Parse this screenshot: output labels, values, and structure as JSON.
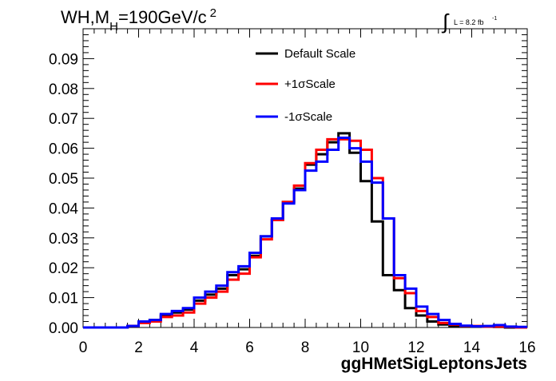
{
  "title": {
    "main": "WH,M",
    "subscript": "H",
    "rest": "=190GeV/c",
    "superscript": "2"
  },
  "luminosity": {
    "integral_symbol": "∫",
    "text": "L = 8.2 fb",
    "superscript": "-1"
  },
  "chart_data": {
    "type": "line",
    "style": "step-histogram",
    "xlabel": "ggHMetSigLeptonsJets",
    "ylabel": "",
    "xlim": [
      0,
      16
    ],
    "ylim": [
      0,
      0.1
    ],
    "x_ticks": [
      "0",
      "2",
      "4",
      "6",
      "8",
      "10",
      "12",
      "14",
      "16"
    ],
    "y_ticks": [
      "0.00",
      "0.01",
      "0.02",
      "0.03",
      "0.04",
      "0.05",
      "0.06",
      "0.07",
      "0.08",
      "0.09"
    ],
    "grid": false,
    "legend_position": "top-center",
    "bin_edges": [
      0.0,
      0.4,
      0.8,
      1.2,
      1.6,
      2.0,
      2.4,
      2.8,
      3.2,
      3.6,
      4.0,
      4.4,
      4.8,
      5.2,
      5.6,
      6.0,
      6.4,
      6.8,
      7.2,
      7.6,
      8.0,
      8.4,
      8.8,
      9.2,
      9.6,
      10.0,
      10.4,
      10.8,
      11.2,
      11.6,
      12.0,
      12.4,
      12.8,
      13.2,
      13.6,
      14.0,
      14.4,
      14.8,
      15.2,
      15.6,
      16.0
    ],
    "series": [
      {
        "name": "Default Scale",
        "color": "#000000",
        "values": [
          0,
          0,
          0,
          0,
          0.0005,
          0.002,
          0.0025,
          0.004,
          0.005,
          0.006,
          0.009,
          0.011,
          0.013,
          0.0175,
          0.0195,
          0.024,
          0.0305,
          0.036,
          0.042,
          0.0465,
          0.0545,
          0.058,
          0.062,
          0.065,
          0.0585,
          0.049,
          0.0355,
          0.0175,
          0.0125,
          0.0065,
          0.004,
          0.002,
          0.001,
          0.0005,
          0.0005,
          0.0003,
          0.0003,
          0.0002,
          0,
          0
        ]
      },
      {
        "name": "+1σScale",
        "color": "#ff0000",
        "values": [
          0,
          0,
          0,
          0,
          0.0005,
          0.0015,
          0.002,
          0.0035,
          0.004,
          0.005,
          0.008,
          0.01,
          0.012,
          0.016,
          0.018,
          0.0235,
          0.0295,
          0.036,
          0.042,
          0.0475,
          0.055,
          0.0595,
          0.063,
          0.063,
          0.0625,
          0.0595,
          0.05,
          0.0365,
          0.0165,
          0.0115,
          0.0055,
          0.0035,
          0.0015,
          0.001,
          0.0005,
          0.0005,
          0.0003,
          0.0003,
          0.0002,
          0
        ]
      },
      {
        "name": "-1σScale",
        "color": "#0000ff",
        "values": [
          0,
          0,
          0,
          0,
          0.0005,
          0.002,
          0.0025,
          0.0045,
          0.0055,
          0.0065,
          0.01,
          0.012,
          0.014,
          0.0185,
          0.0205,
          0.025,
          0.0305,
          0.0365,
          0.0415,
          0.046,
          0.0525,
          0.0555,
          0.0595,
          0.0635,
          0.06,
          0.0555,
          0.0485,
          0.0365,
          0.0175,
          0.013,
          0.007,
          0.0045,
          0.0025,
          0.0012,
          0.0006,
          0.0004,
          0.0005,
          0.0008,
          0.0003,
          0.0002
        ]
      }
    ]
  }
}
